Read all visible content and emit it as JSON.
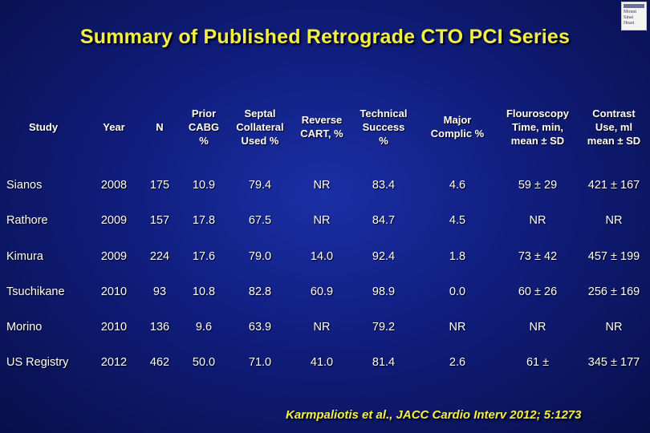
{
  "title": "Summary of Published Retrograde CTO PCI Series",
  "logo": {
    "text_lines": [
      "Mount",
      "Sinai",
      "Heart"
    ]
  },
  "table": {
    "headers": [
      "Study",
      "Year",
      "N",
      "Prior\nCABG\n%",
      "Septal\nCollateral\nUsed %",
      "Reverse\nCART, %",
      "Technical\nSuccess\n%",
      "Major\nComplic %",
      "Flouroscopy\nTime, min,\nmean ± SD",
      "Contrast\nUse, ml\nmean ± SD"
    ],
    "rows": [
      [
        "Sianos",
        "2008",
        "175",
        "10.9",
        "79.4",
        "NR",
        "83.4",
        "4.6",
        "59 ± 29",
        "421 ± 167"
      ],
      [
        "Rathore",
        "2009",
        "157",
        "17.8",
        "67.5",
        "NR",
        "84.7",
        "4.5",
        "NR",
        "NR"
      ],
      [
        "Kimura",
        "2009",
        "224",
        "17.6",
        "79.0",
        "14.0",
        "92.4",
        "1.8",
        "73 ± 42",
        "457 ± 199"
      ],
      [
        "Tsuchikane",
        "2010",
        "93",
        "10.8",
        "82.8",
        "60.9",
        "98.9",
        "0.0",
        "60 ± 26",
        "256 ± 169"
      ],
      [
        "Morino",
        "2010",
        "136",
        "9.6",
        "63.9",
        "NR",
        "79.2",
        "NR",
        "NR",
        "NR"
      ],
      [
        "US Registry",
        "2012",
        "462",
        "50.0",
        "71.0",
        "41.0",
        "81.4",
        "2.6",
        "61 ±",
        "345 ± 177"
      ]
    ]
  },
  "citation": "Karmpaliotis et al., JACC Cardio Interv 2012; 5:1273",
  "colors": {
    "background": "#101d7c",
    "title": "#f2ef45",
    "text": "#ffffff"
  }
}
